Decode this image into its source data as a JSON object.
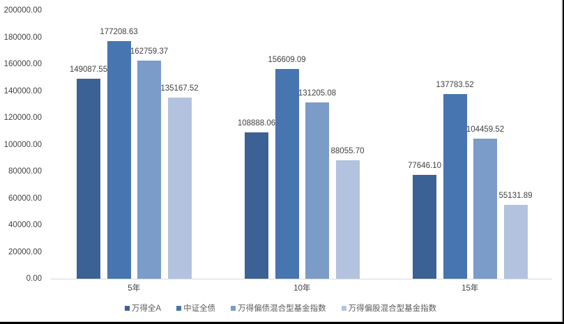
{
  "chart_data": {
    "type": "bar",
    "title": "",
    "xlabel": "",
    "ylabel": "",
    "ylim": [
      0,
      200000
    ],
    "yticks": [
      "0.00",
      "20000.00",
      "40000.00",
      "60000.00",
      "80000.00",
      "100000.00",
      "120000.00",
      "140000.00",
      "160000.00",
      "180000.00",
      "200000.00"
    ],
    "categories": [
      "5年",
      "10年",
      "15年"
    ],
    "series": [
      {
        "name": "万得全A",
        "color": "#3c6295",
        "values": [
          149087.55,
          108888.06,
          77646.1
        ],
        "labels": [
          "149087.55",
          "108888.06",
          "77646.10"
        ]
      },
      {
        "name": "中证全债",
        "color": "#4675b0",
        "values": [
          177208.63,
          156609.09,
          137783.52
        ],
        "labels": [
          "177208.63",
          "156609.09",
          "137783.52"
        ]
      },
      {
        "name": "万得偏债混合型基金指数",
        "color": "#7b9bc8",
        "values": [
          162759.37,
          131205.08,
          104459.52
        ],
        "labels": [
          "162759.37",
          "131205.08",
          "104459.52"
        ]
      },
      {
        "name": "万得偏股混合型基金指数",
        "color": "#b3c3df",
        "values": [
          135167.52,
          88055.7,
          55131.89
        ],
        "labels": [
          "135167.52",
          "88055.70",
          "55131.89"
        ]
      }
    ],
    "legend_position": "bottom",
    "grid": false
  }
}
